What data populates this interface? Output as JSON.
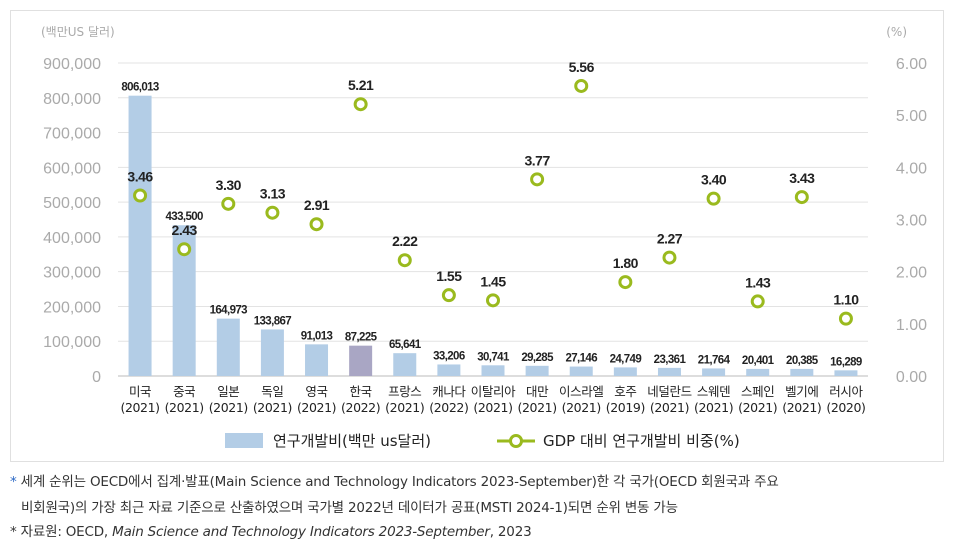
{
  "chart_data": {
    "type": "bar+line",
    "y_left_unit": "(백만US 달러)",
    "y_right_unit": "(%)",
    "y_left_ticks": [
      "900,000",
      "800,000",
      "700,000",
      "600,000",
      "500,000",
      "400,000",
      "300,000",
      "200,000",
      "100,000",
      "0"
    ],
    "y_right_ticks": [
      "6.00",
      "5.00",
      "4.00",
      "3.00",
      "2.00",
      "1.00",
      "0.00"
    ],
    "ylim_left": [
      0,
      900000
    ],
    "ylim_right": [
      0,
      6
    ],
    "categories": [
      {
        "name": "미국",
        "year": "(2021)"
      },
      {
        "name": "중국",
        "year": "(2021)"
      },
      {
        "name": "일본",
        "year": "(2021)"
      },
      {
        "name": "독일",
        "year": "(2021)"
      },
      {
        "name": "영국",
        "year": "(2021)"
      },
      {
        "name": "한국",
        "year": "(2022)"
      },
      {
        "name": "프랑스",
        "year": "(2021)"
      },
      {
        "name": "캐나다",
        "year": "(2022)"
      },
      {
        "name": "이탈리아",
        "year": "(2021)"
      },
      {
        "name": "대만",
        "year": "(2021)"
      },
      {
        "name": "이스라엘",
        "year": "(2021)"
      },
      {
        "name": "호주",
        "year": "(2019)"
      },
      {
        "name": "네덜란드",
        "year": "(2021)"
      },
      {
        "name": "스웨덴",
        "year": "(2021)"
      },
      {
        "name": "스페인",
        "year": "(2021)"
      },
      {
        "name": "벨기에",
        "year": "(2021)"
      },
      {
        "name": "러시아",
        "year": "(2020)"
      }
    ],
    "series": [
      {
        "name": "연구개발비(백만 us달러)",
        "axis": "left",
        "kind": "bar",
        "values": [
          806013,
          433500,
          164973,
          133867,
          91013,
          87225,
          65641,
          33206,
          30741,
          29285,
          27146,
          24749,
          23361,
          21764,
          20401,
          20385,
          16289
        ],
        "labels": [
          "806,013",
          "433,500",
          "164,973",
          "133,867",
          "91,013",
          "87,225",
          "65,641",
          "33,206",
          "30,741",
          "29,285",
          "27,146",
          "24,749",
          "23,361",
          "21,764",
          "20,401",
          "20,385",
          "16,289"
        ]
      },
      {
        "name": "GDP 대비 연구개발비 비중(%)",
        "axis": "right",
        "kind": "points",
        "values": [
          3.46,
          2.43,
          3.3,
          3.13,
          2.91,
          5.21,
          2.22,
          1.55,
          1.45,
          3.77,
          5.56,
          1.8,
          2.27,
          3.4,
          1.43,
          3.43,
          1.1
        ],
        "labels": [
          "3.46",
          "2.43",
          "3.30",
          "3.13",
          "2.91",
          "5.21",
          "2.22",
          "1.55",
          "1.45",
          "3.77",
          "5.56",
          "1.80",
          "2.27",
          "3.40",
          "1.43",
          "3.43",
          "1.10"
        ]
      }
    ],
    "highlight_index": 5,
    "colors": {
      "bar": "#b3cde6",
      "bar_highlight": "#a9a6c4",
      "marker": "#9aba1e",
      "grid": "#e3e3e3",
      "axis_text": "#aaaaaa"
    },
    "legend_position": "bottom"
  },
  "notes": {
    "note1_mark": "*",
    "note1_line1": "세계 순위는 OECD에서 집계·발표(Main Science and Technology Indicators 2023-September)한 각 국가(OECD 회원국과 주요",
    "note1_line2": "비회원국)의 가장 최근 자료 기준으로 산출하였으며 국가별 2022년 데이터가 공표(MSTI 2024-1)되면 순위 변동 가능",
    "note2_mark": "*",
    "note2_prefix": "자료원: OECD,",
    "note2_title": "Main Science and Technology Indicators 2023-September",
    "note2_suffix": ", 2023"
  }
}
